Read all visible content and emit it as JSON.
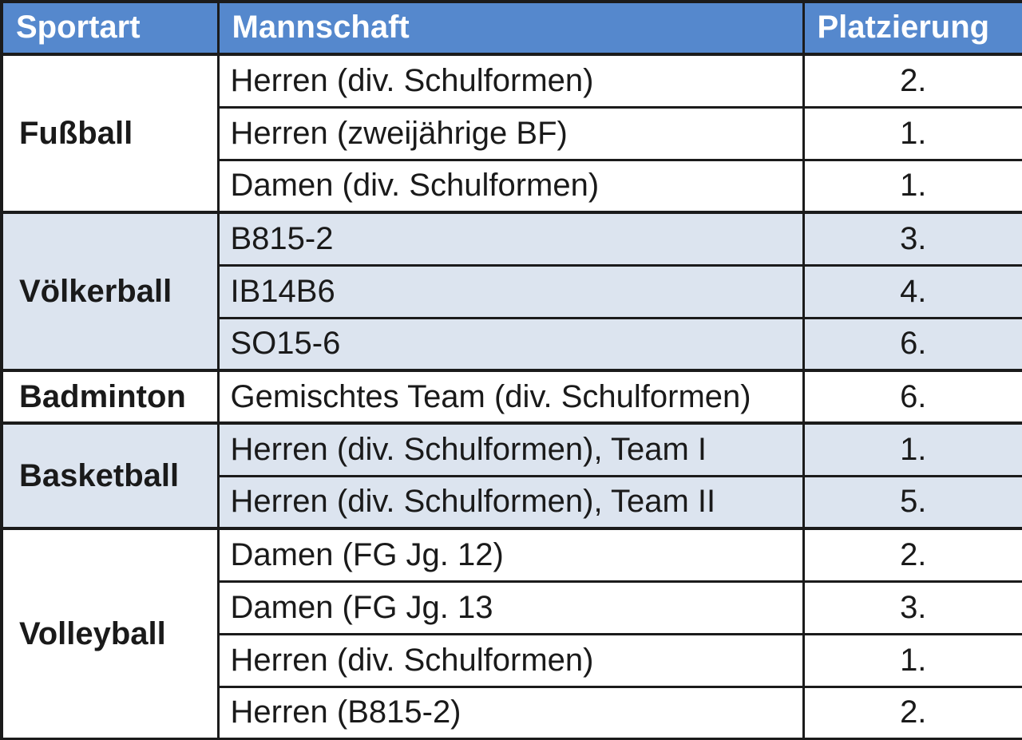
{
  "colors": {
    "header_bg": "#5588CD",
    "header_text": "#ffffff",
    "band_bg": "#DCE4EF",
    "row_bg": "#ffffff",
    "border": "#1b1b1b",
    "body_text": "#1a1a1a"
  },
  "table": {
    "columns": [
      {
        "key": "sport",
        "label": "Sportart"
      },
      {
        "key": "team",
        "label": "Mannschaft"
      },
      {
        "key": "place",
        "label": "Platzierung"
      }
    ],
    "groups": [
      {
        "sport": "Fußball",
        "banded": false,
        "teams": [
          {
            "name": "Herren (div. Schulformen)",
            "place": "2."
          },
          {
            "name": "Herren (zweijährige BF)",
            "place": "1."
          },
          {
            "name": "Damen (div. Schulformen)",
            "place": "1."
          }
        ]
      },
      {
        "sport": "Völkerball",
        "banded": true,
        "teams": [
          {
            "name": "B815-2",
            "place": "3."
          },
          {
            "name": "IB14B6",
            "place": "4."
          },
          {
            "name": "SO15-6",
            "place": "6."
          }
        ]
      },
      {
        "sport": "Badminton",
        "banded": false,
        "teams": [
          {
            "name": "Gemischtes Team (div. Schulformen)",
            "place": "6."
          }
        ]
      },
      {
        "sport": "Basketball",
        "banded": true,
        "teams": [
          {
            "name": "Herren (div. Schulformen), Team I",
            "place": "1."
          },
          {
            "name": "Herren (div. Schulformen), Team II",
            "place": "5."
          }
        ]
      },
      {
        "sport": "Volleyball",
        "banded": false,
        "teams": [
          {
            "name": "Damen (FG Jg. 12)",
            "place": "2."
          },
          {
            "name": "Damen (FG Jg. 13",
            "place": "3."
          },
          {
            "name": "Herren (div. Schulformen)",
            "place": "1."
          },
          {
            "name": "Herren (B815-2)",
            "place": "2."
          }
        ]
      }
    ]
  }
}
